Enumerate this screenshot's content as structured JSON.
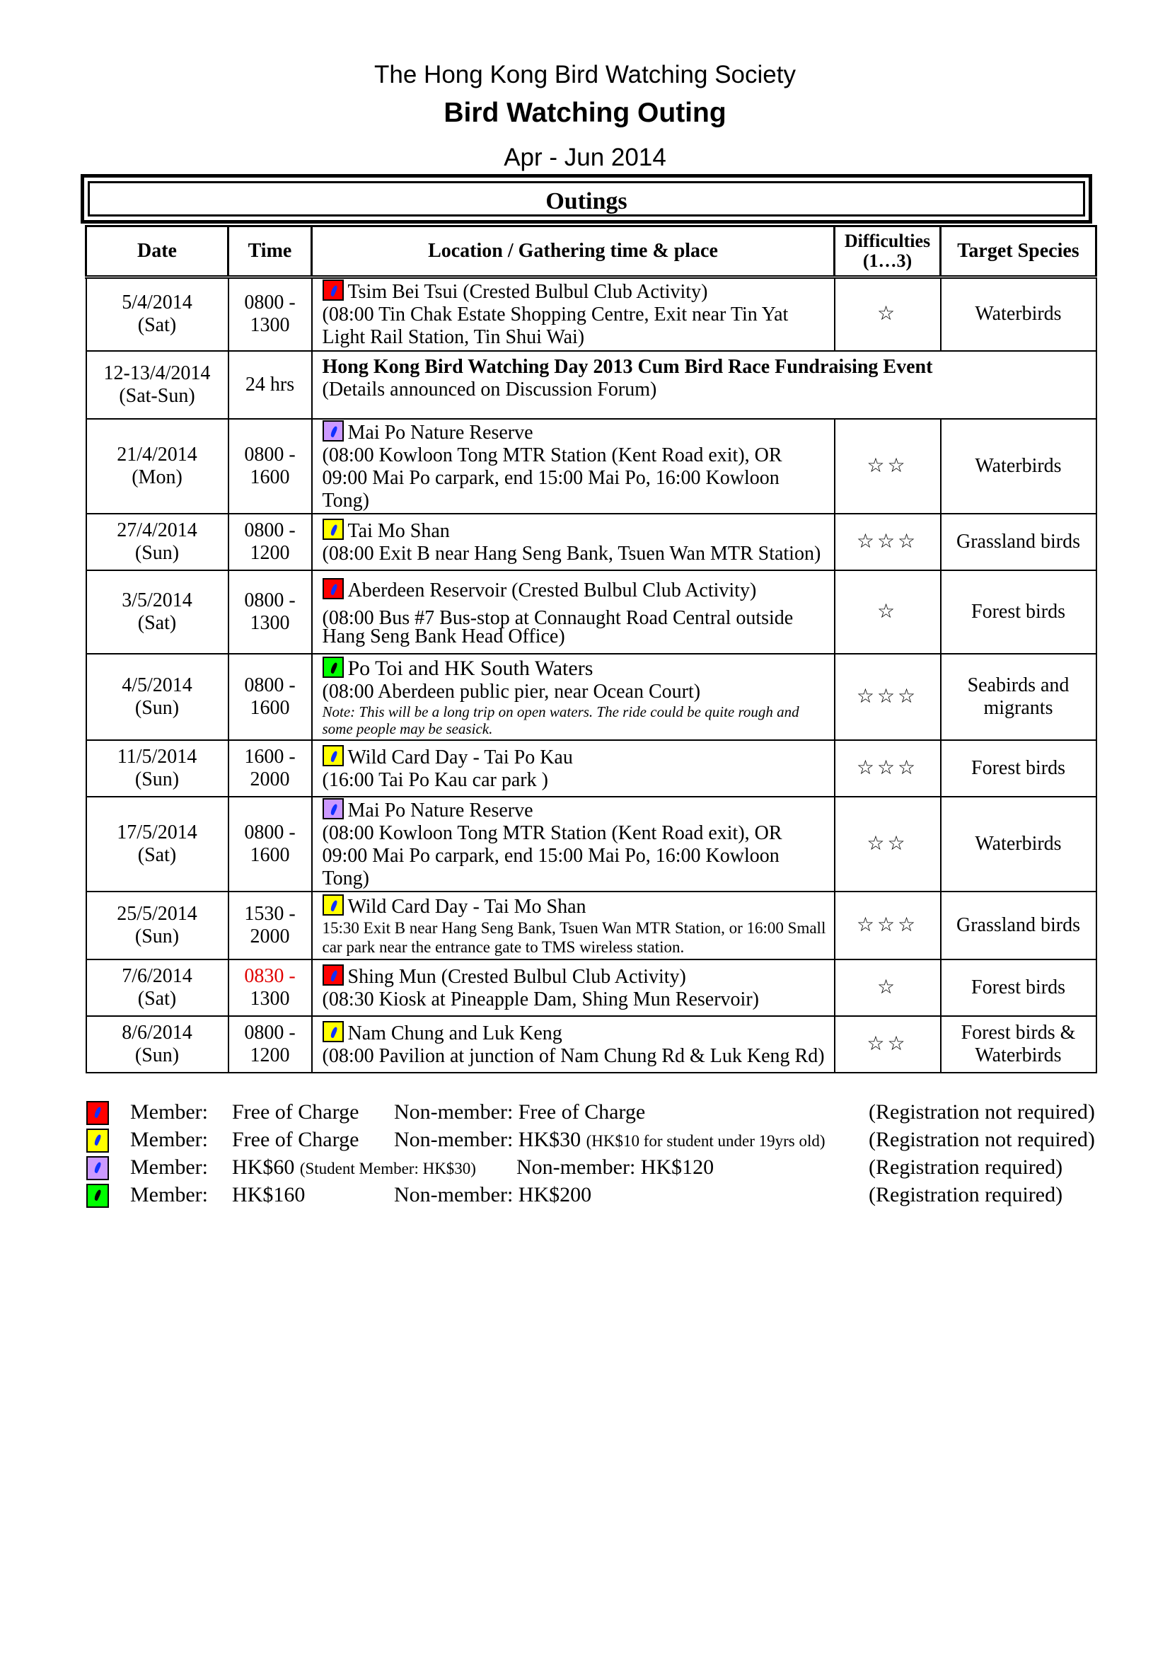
{
  "header": {
    "organization": "The Hong Kong Bird Watching Society",
    "title": "Bird Watching Outing",
    "period": "Apr - Jun 2014"
  },
  "table": {
    "title": "Outings",
    "columns": [
      "Date",
      "Time",
      "Location / Gathering time & place",
      "Difficulties (1…3)",
      "Target Species"
    ],
    "rows": [
      {
        "date": "5/4/2014",
        "day": "(Sat)",
        "time_start": "0800 -",
        "time_end": "1300",
        "icon": "red",
        "location": "Tsim Bei Tsui (Crested Bulbul Club Activity)",
        "details": "(08:00 Tin Chak Estate Shopping Centre, Exit near Tin Yat Light Rail Station, Tin Shui Wai)",
        "difficulty": "☆",
        "species": "Waterbirds"
      },
      {
        "date": "12-13/4/2014",
        "day": "(Sat-Sun)",
        "time_start": "24 hrs",
        "time_end": "",
        "icon": "",
        "location": "Hong Kong Bird Watching Day 2013 Cum Bird Race Fundraising Event",
        "details": "(Details announced on Discussion Forum)",
        "difficulty": "",
        "species": ""
      },
      {
        "date": "21/4/2014",
        "day": "(Mon)",
        "time_start": "0800 -",
        "time_end": "1600",
        "icon": "purple",
        "location": "Mai Po Nature Reserve",
        "details": "(08:00 Kowloon Tong MTR Station (Kent Road exit), OR 09:00 Mai Po carpark, end 15:00 Mai Po, 16:00 Kowloon Tong)",
        "difficulty": "☆☆",
        "species": "Waterbirds"
      },
      {
        "date": "27/4/2014",
        "day": "(Sun)",
        "time_start": "0800 -",
        "time_end": "1200",
        "icon": "yellow",
        "location": "Tai Mo Shan",
        "details": "(08:00 Exit B near Hang Seng Bank, Tsuen Wan MTR Station)",
        "difficulty": "☆☆☆",
        "species": "Grassland birds"
      },
      {
        "date": "3/5/2014",
        "day": "(Sat)",
        "time_start": "0800 -",
        "time_end": "1300",
        "icon": "red",
        "location": "Aberdeen Reservoir (Crested Bulbul Club Activity)",
        "details": "(08:00 Bus #7 Bus-stop at Connaught Road Central outside Hang Seng Bank Head Office)",
        "difficulty": "☆",
        "species": "Forest birds"
      },
      {
        "date": "4/5/2014",
        "day": "(Sun)",
        "time_start": "0800 -",
        "time_end": "1600",
        "icon": "green",
        "location": "Po Toi and HK South Waters",
        "details": "(08:00 Aberdeen public pier, near Ocean Court)",
        "note": "Note: This will be a long trip on open waters. The ride could be quite rough and some people may be seasick.",
        "difficulty": "☆☆☆",
        "species": "Seabirds and migrants"
      },
      {
        "date": "11/5/2014",
        "day": "(Sun)",
        "time_start": "1600 -",
        "time_end": "2000",
        "icon": "yellow",
        "location": "Wild Card Day - Tai Po Kau",
        "details": "(16:00 Tai Po Kau car park )",
        "difficulty": "☆☆☆",
        "species": "Forest birds"
      },
      {
        "date": "17/5/2014",
        "day": "(Sat)",
        "time_start": "0800 -",
        "time_end": "1600",
        "icon": "purple",
        "location": "Mai Po Nature Reserve",
        "details": "(08:00 Kowloon Tong MTR Station (Kent Road exit), OR 09:00 Mai Po carpark, end 15:00 Mai Po, 16:00 Kowloon Tong)",
        "difficulty": "☆☆",
        "species": "Waterbirds"
      },
      {
        "date": "25/5/2014",
        "day": "(Sun)",
        "time_start": "1530 -",
        "time_end": "2000",
        "icon": "yellow",
        "location": "Wild Card Day - Tai Mo Shan",
        "details": "15:30 Exit B near Hang Seng Bank, Tsuen Wan MTR Station, or 16:00 Small car park near the entrance gate to TMS wireless station.",
        "difficulty": "☆☆☆",
        "species": "Grassland birds"
      },
      {
        "date": "7/6/2014",
        "day": "(Sat)",
        "time_start": "0830 -",
        "time_end": "1300",
        "icon": "red",
        "location": "Shing Mun (Crested Bulbul Club Activity)",
        "details": "(08:30 Kiosk at Pineapple Dam, Shing Mun Reservoir)",
        "difficulty": "☆",
        "species": "Forest birds",
        "time_start_color": "#e00000"
      },
      {
        "date": "8/6/2014",
        "day": "(Sun)",
        "time_start": "0800 -",
        "time_end": "1200",
        "icon": "yellow",
        "location": "Nam Chung and Luk Keng",
        "details": "(08:00 Pavilion at junction of Nam Chung Rd & Luk Keng Rd)",
        "difficulty": "☆☆",
        "species": "Forest birds & Waterbirds"
      }
    ]
  },
  "legend": [
    {
      "icon": "red",
      "member_label": "Member:",
      "member_fee": "Free of Charge",
      "member_note": "",
      "nonmember": "Non-member: Free of Charge",
      "nonmember_note": "",
      "registration": "(Registration not required)"
    },
    {
      "icon": "yellow",
      "member_label": "Member:",
      "member_fee": "Free of Charge",
      "member_note": "",
      "nonmember": "Non-member: HK$30",
      "nonmember_note": "(HK$10 for student under 19yrs old)",
      "registration": "(Registration not required)"
    },
    {
      "icon": "purple",
      "member_label": "Member:",
      "member_fee": "HK$60",
      "member_note": "(Student Member: HK$30)",
      "nonmember": "Non-member: HK$120",
      "nonmember_note": "",
      "registration": "(Registration required)"
    },
    {
      "icon": "green",
      "member_label": "Member:",
      "member_fee": "HK$160",
      "member_note": "",
      "nonmember": "Non-member: HK$200",
      "nonmember_note": "",
      "registration": "(Registration required)"
    }
  ],
  "colors": {
    "red": "#ff0000",
    "yellow": "#ffff00",
    "purple": "#cc99ff",
    "green": "#00ff00",
    "highlight_text": "#e00000"
  }
}
